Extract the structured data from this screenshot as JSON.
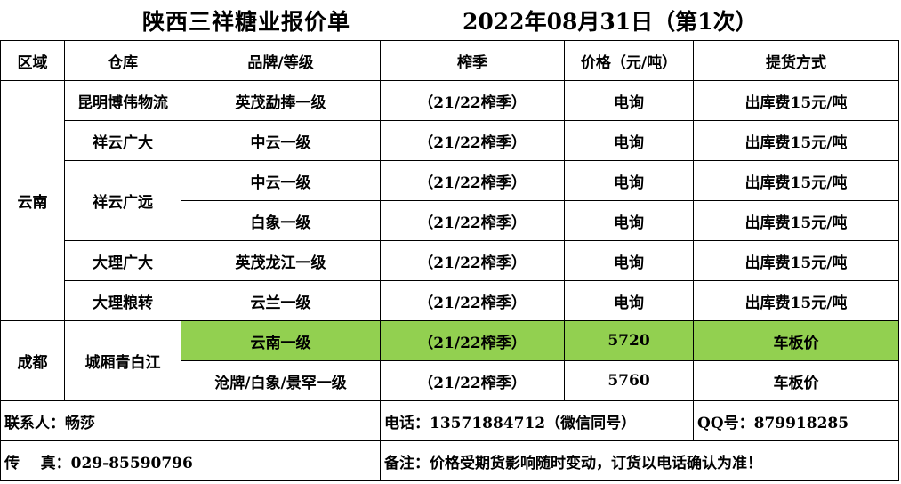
{
  "title": {
    "main": "陕西三祥糖业报价单",
    "date": "2022年08月31日（第1次）"
  },
  "headers": [
    "区域",
    "仓库",
    "品牌/等级",
    "榨季",
    "价格（元/吨）",
    "提货方式"
  ],
  "regions": {
    "yunnan": "云南",
    "chengdu": "成都"
  },
  "rows": [
    {
      "warehouse": "昆明博伟物流",
      "brand": "英茂勐捧一级",
      "season": "（21/22榨季）",
      "price": "电询",
      "delivery": "出库费15元/吨"
    },
    {
      "warehouse": "祥云广大",
      "brand": "中云一级",
      "season": "（21/22榨季）",
      "price": "电询",
      "delivery": "出库费15元/吨"
    },
    {
      "warehouse": "祥云广远",
      "brand": "中云一级",
      "season": "（21/22榨季）",
      "price": "电询",
      "delivery": "出库费15元/吨"
    },
    {
      "warehouse": "",
      "brand": "白象一级",
      "season": "（21/22榨季）",
      "price": "电询",
      "delivery": "出库费15元/吨"
    },
    {
      "warehouse": "大理广大",
      "brand": "英茂龙江一级",
      "season": "（21/22榨季）",
      "price": "电询",
      "delivery": "出库费15元/吨"
    },
    {
      "warehouse": "大理粮转",
      "brand": "云兰一级",
      "season": "（21/22榨季）",
      "price": "电询",
      "delivery": "出库费15元/吨"
    },
    {
      "warehouse": "城厢青白江",
      "brand": "云南一级",
      "season": "（21/22榨季）",
      "price": "5720",
      "delivery": "车板价"
    },
    {
      "warehouse": "",
      "brand": "沧牌/白象/景罕一级",
      "season": "（21/22榨季）",
      "price": "5760",
      "delivery": "车板价"
    }
  ],
  "footer": {
    "contact": "联系人：畅莎",
    "phone": "电话：13571884712（微信同号）",
    "qq": "QQ号：879918285",
    "fax": "传    真：029-85590796",
    "note": "备注：价格受期货影响随时变动，订货以电话确认为准！"
  },
  "colors": {
    "highlight": "#92d050"
  }
}
